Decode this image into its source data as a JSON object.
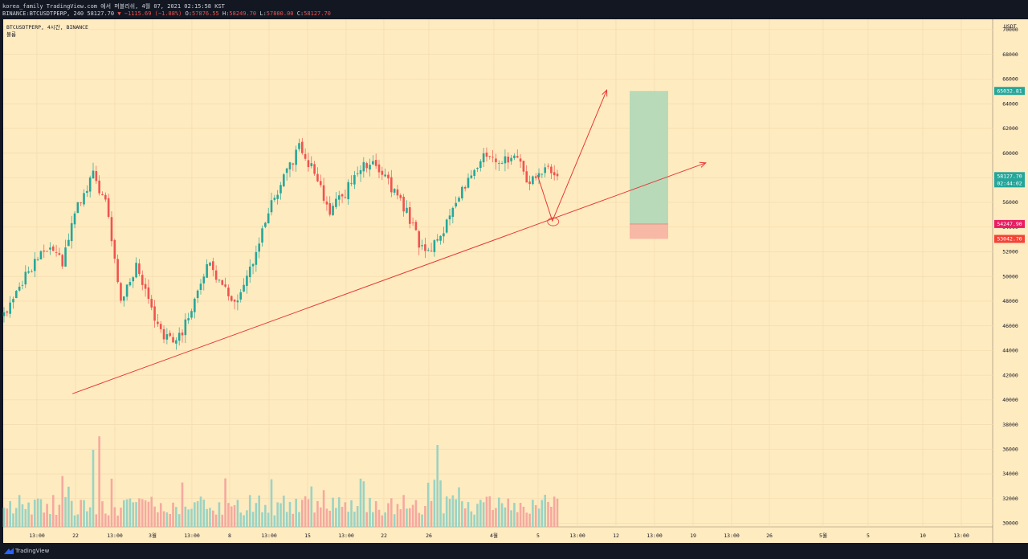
{
  "header": {
    "line1": "korea_family TradingView.com 에서 퍼블리쉬, 4월 07, 2021 02:15:58 KST",
    "symbol": "BINANCE:BTCUSDTPERP, 240",
    "last": "58127.70",
    "change": "▼ −1115.69 (−1.88%)",
    "o_label": "O:",
    "o_value": "57876.55",
    "h_label": "H:",
    "h_value": "58249.70",
    "l_label": "L:",
    "l_value": "57800.00",
    "c_label": "C:",
    "c_value": "58127.70"
  },
  "legend": {
    "title": "BTCUSDTPERP, 4시간, BINANCE",
    "volume_label": "볼륨"
  },
  "price_scale": {
    "unit": "USDT",
    "ticks": [
      "70000",
      "68000",
      "66000",
      "64000",
      "62000",
      "60000",
      "58000",
      "56000",
      "54000",
      "52000",
      "50000",
      "48000",
      "46000",
      "44000",
      "42000",
      "40000",
      "38000",
      "36000",
      "34000",
      "32000",
      "30000"
    ]
  },
  "price_labels": {
    "target": "65032.81",
    "current": "58127.70",
    "countdown": "02:44:02",
    "entry": "54247.90",
    "stop": "53042.70"
  },
  "time_axis": {
    "labels": [
      "13:00",
      "22",
      "13:00",
      "3월",
      "13:00",
      "8",
      "13:00",
      "15",
      "13:00",
      "22",
      "26",
      "4월",
      "5",
      "13:00",
      "12",
      "13:00",
      "19",
      "13:00",
      "26",
      "5월",
      "5",
      "10",
      "13:00"
    ]
  },
  "footer": {
    "brand": "TradingView"
  },
  "colors": {
    "background": "#ffebc0",
    "up": "#26a69a",
    "down": "#ef5350",
    "trendline": "#e53935",
    "target_zone": "#b8dab9",
    "stop_zone": "#f7b9a5",
    "grid": "#f3ddb0",
    "frame": "#131722"
  },
  "chart_data": {
    "type": "candlestick",
    "symbol": "BTCUSDTPERP",
    "interval": "4시간",
    "exchange": "BINANCE",
    "yunit": "USDT",
    "ylim": [
      29500,
      70500
    ],
    "price_series": [
      {
        "x": 0,
        "price": 46800
      },
      {
        "x": 8,
        "price": 50500
      },
      {
        "x": 14,
        "price": 52400
      },
      {
        "x": 19,
        "price": 51200
      },
      {
        "x": 24,
        "price": 55800
      },
      {
        "x": 29,
        "price": 58200
      },
      {
        "x": 33,
        "price": 56100
      },
      {
        "x": 38,
        "price": 48200
      },
      {
        "x": 43,
        "price": 50800
      },
      {
        "x": 48,
        "price": 47100
      },
      {
        "x": 52,
        "price": 45000
      },
      {
        "x": 56,
        "price": 44500
      },
      {
        "x": 61,
        "price": 47300
      },
      {
        "x": 66,
        "price": 51200
      },
      {
        "x": 71,
        "price": 49300
      },
      {
        "x": 76,
        "price": 47900
      },
      {
        "x": 81,
        "price": 51200
      },
      {
        "x": 86,
        "price": 55500
      },
      {
        "x": 91,
        "price": 58100
      },
      {
        "x": 96,
        "price": 60400
      },
      {
        "x": 101,
        "price": 58500
      },
      {
        "x": 106,
        "price": 55300
      },
      {
        "x": 111,
        "price": 56800
      },
      {
        "x": 116,
        "price": 58900
      },
      {
        "x": 121,
        "price": 59200
      },
      {
        "x": 126,
        "price": 57100
      },
      {
        "x": 131,
        "price": 55200
      },
      {
        "x": 136,
        "price": 52100
      },
      {
        "x": 141,
        "price": 52800
      },
      {
        "x": 146,
        "price": 55600
      },
      {
        "x": 151,
        "price": 57600
      },
      {
        "x": 156,
        "price": 59600
      },
      {
        "x": 161,
        "price": 59400
      },
      {
        "x": 166,
        "price": 59800
      },
      {
        "x": 171,
        "price": 57600
      },
      {
        "x": 176,
        "price": 58900
      },
      {
        "x": 180,
        "price": 58127.7
      }
    ],
    "volume": {
      "range": "moderate",
      "spikes_at": [
        29,
        31,
        141
      ]
    },
    "annotations": {
      "trendline": {
        "from": {
          "x_frac": 0.07,
          "price": 40500
        },
        "to": {
          "x_frac": 0.71,
          "price": 59200
        }
      },
      "projection": [
        {
          "x_frac": 0.54,
          "price": 58200
        },
        {
          "x_frac": 0.555,
          "price": 54500
        },
        {
          "x_frac": 0.61,
          "price": 65100
        }
      ],
      "long_position": {
        "target": 65032.81,
        "entry": 54247.9,
        "stop": 53042.7
      }
    }
  }
}
